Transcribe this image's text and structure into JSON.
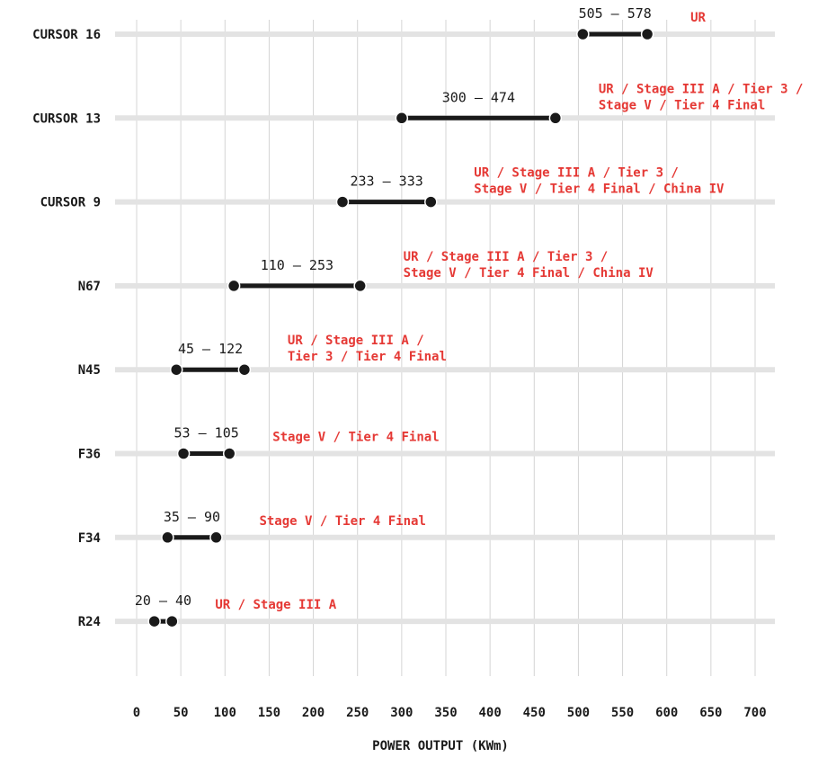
{
  "chart_data": {
    "type": "range-bar",
    "xlabel": "POWER OUTPUT (KWm)",
    "xlim": [
      0,
      700
    ],
    "x_ticks": [
      0,
      50,
      100,
      150,
      200,
      250,
      300,
      350,
      400,
      450,
      500,
      550,
      600,
      650,
      700
    ],
    "grid": "vertical",
    "accent_color": "#e53935",
    "series": [
      {
        "category": "CURSOR 16",
        "min": 505,
        "max": 578,
        "label": "505 — 578",
        "certifications": [
          "UR"
        ]
      },
      {
        "category": "CURSOR 13",
        "min": 300,
        "max": 474,
        "label": "300 — 474",
        "certifications": [
          "UR / Stage III A / Tier 3 /",
          "Stage V / Tier 4 Final"
        ]
      },
      {
        "category": "CURSOR 9",
        "min": 233,
        "max": 333,
        "label": "233 — 333",
        "certifications": [
          "UR / Stage III A / Tier 3 /",
          "Stage V / Tier 4 Final / China IV"
        ]
      },
      {
        "category": "N67",
        "min": 110,
        "max": 253,
        "label": "110 — 253",
        "certifications": [
          "UR / Stage III A / Tier 3 /",
          "Stage V / Tier 4 Final / China IV"
        ]
      },
      {
        "category": "N45",
        "min": 45,
        "max": 122,
        "label": "45 — 122",
        "certifications": [
          "UR / Stage III A /",
          "Tier 3 / Tier 4 Final"
        ]
      },
      {
        "category": "F36",
        "min": 53,
        "max": 105,
        "label": "53 — 105",
        "certifications": [
          "Stage V / Tier 4 Final"
        ]
      },
      {
        "category": "F34",
        "min": 35,
        "max": 90,
        "label": "35 — 90",
        "certifications": [
          "Stage V / Tier 4 Final"
        ]
      },
      {
        "category": "R24",
        "min": 20,
        "max": 40,
        "label": "20 — 40",
        "certifications": [
          "UR / Stage III A"
        ]
      }
    ]
  }
}
